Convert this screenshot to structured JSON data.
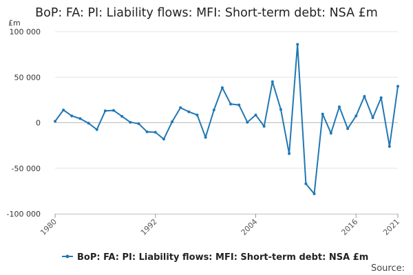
{
  "chart_data": {
    "type": "line",
    "title": "BoP: FA: PI: Liability flows: MFI: Short-term debt: NSA £m",
    "yunit": "£m",
    "ylim": [
      -100000,
      100000
    ],
    "yticks": [
      100000,
      50000,
      0,
      -50000,
      -100000
    ],
    "ytick_labels": [
      "100 000",
      "50 000",
      "0",
      "-50 000",
      "-100 000"
    ],
    "xlim": [
      1980,
      2021
    ],
    "xticks": [
      1980,
      1992,
      2004,
      2016,
      2021
    ],
    "xtick_labels": [
      "1980",
      "1992",
      "2004",
      "2016",
      "2021"
    ],
    "grid": true,
    "legend_position": "bottom",
    "series": [
      {
        "name": "BoP: FA: PI: Liability flows: MFI: Short-term debt: NSA £m",
        "color": "#1f77b4",
        "x": [
          1980,
          1981,
          1982,
          1983,
          1984,
          1985,
          1986,
          1987,
          1988,
          1989,
          1990,
          1991,
          1992,
          1993,
          1994,
          1995,
          1996,
          1997,
          1998,
          1999,
          2000,
          2001,
          2002,
          2003,
          2004,
          2005,
          2006,
          2007,
          2008,
          2009,
          2010,
          2011,
          2012,
          2013,
          2014,
          2015,
          2016,
          2017,
          2018,
          2019,
          2020,
          2021
        ],
        "y": [
          1500,
          14000,
          7500,
          4500,
          -500,
          -7500,
          13000,
          13500,
          7000,
          500,
          -1000,
          -10000,
          -10500,
          -18000,
          1000,
          16500,
          12000,
          8500,
          -16000,
          14000,
          38500,
          20500,
          19500,
          500,
          8500,
          -4000,
          45000,
          14500,
          -34000,
          86000,
          -67000,
          -78000,
          9500,
          -11500,
          17500,
          -6500,
          7500,
          29000,
          5500,
          27500,
          -26000,
          40000
        ]
      }
    ],
    "source_label": "Source:"
  }
}
